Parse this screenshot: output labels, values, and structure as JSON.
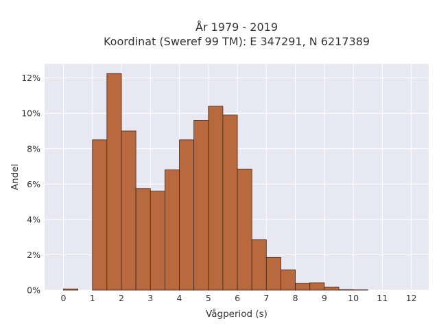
{
  "chart_data": {
    "type": "bar",
    "title_lines": [
      "År 1979 - 2019",
      "Koordinat (Sweref 99 TM): E 347291, N 6217389"
    ],
    "xlabel": "Vågperiod (s)",
    "ylabel": "Andel",
    "x_ticks": [
      {
        "value": 0,
        "label": "0"
      },
      {
        "value": 1,
        "label": "1"
      },
      {
        "value": 2,
        "label": "2"
      },
      {
        "value": 3,
        "label": "3"
      },
      {
        "value": 4,
        "label": "4"
      },
      {
        "value": 5,
        "label": "5"
      },
      {
        "value": 6,
        "label": "6"
      },
      {
        "value": 7,
        "label": "7"
      },
      {
        "value": 8,
        "label": "8"
      },
      {
        "value": 9,
        "label": "9"
      },
      {
        "value": 10,
        "label": "10"
      },
      {
        "value": 11,
        "label": "11"
      },
      {
        "value": 12,
        "label": "12"
      }
    ],
    "y_ticks": [
      {
        "value": 0,
        "label": "0%"
      },
      {
        "value": 2,
        "label": "2%"
      },
      {
        "value": 4,
        "label": "4%"
      },
      {
        "value": 6,
        "label": "6%"
      },
      {
        "value": 8,
        "label": "8%"
      },
      {
        "value": 10,
        "label": "10%"
      },
      {
        "value": 12,
        "label": "12%"
      }
    ],
    "xlim": [
      -0.65,
      12.6
    ],
    "ylim": [
      0,
      12.8
    ],
    "bin_width": 0.5,
    "bins": [
      {
        "start": 0.0,
        "value": 0.07
      },
      {
        "start": 1.0,
        "value": 8.5
      },
      {
        "start": 1.5,
        "value": 12.25
      },
      {
        "start": 2.0,
        "value": 9.0
      },
      {
        "start": 2.5,
        "value": 5.75
      },
      {
        "start": 3.0,
        "value": 5.6
      },
      {
        "start": 3.5,
        "value": 6.8
      },
      {
        "start": 4.0,
        "value": 8.5
      },
      {
        "start": 4.5,
        "value": 9.6
      },
      {
        "start": 5.0,
        "value": 10.4
      },
      {
        "start": 5.5,
        "value": 9.9
      },
      {
        "start": 6.0,
        "value": 6.85
      },
      {
        "start": 6.5,
        "value": 2.85
      },
      {
        "start": 7.0,
        "value": 1.85
      },
      {
        "start": 7.5,
        "value": 1.15
      },
      {
        "start": 8.0,
        "value": 0.38
      },
      {
        "start": 8.5,
        "value": 0.42
      },
      {
        "start": 9.0,
        "value": 0.18
      },
      {
        "start": 9.5,
        "value": 0.03
      },
      {
        "start": 10.0,
        "value": 0.02
      }
    ],
    "grid": true,
    "colors": {
      "bar_fill": "#b86a3e",
      "bar_edge": "#3a2418",
      "plot_bg": "#e8e8f2",
      "grid": "#ffffff"
    }
  }
}
